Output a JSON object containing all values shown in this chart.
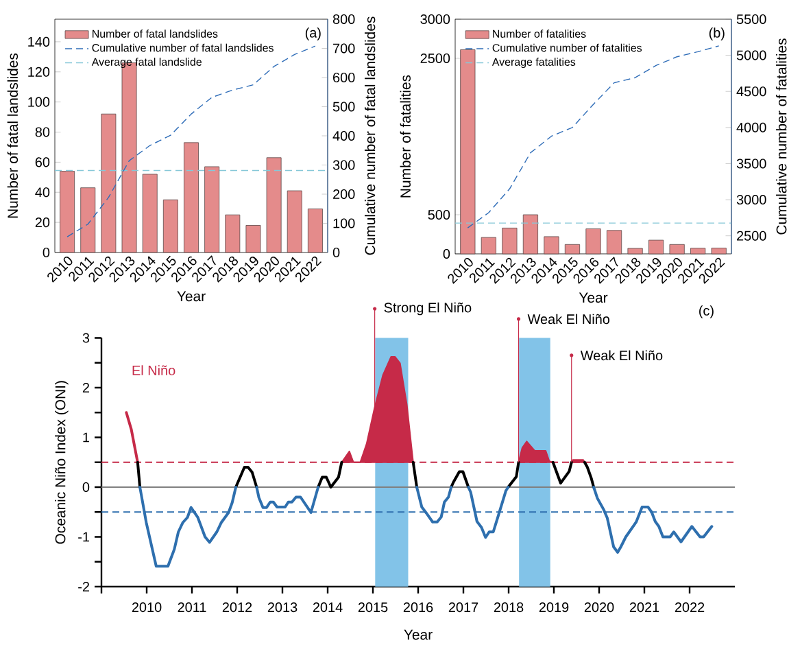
{
  "chart_data": [
    {
      "type": "bar",
      "categories": [
        "2010",
        "2011",
        "2012",
        "2013",
        "2014",
        "2015",
        "2016",
        "2017",
        "2018",
        "2019",
        "2020",
        "2021",
        "2022"
      ],
      "series": [
        {
          "name": "Number of fatal landslides",
          "type": "bar",
          "color": "#e48b8b",
          "values": [
            54,
            43,
            92,
            126,
            52,
            35,
            73,
            57,
            25,
            18,
            63,
            41,
            29
          ]
        },
        {
          "name": "Cumulative number of fatal landslides",
          "type": "line",
          "axis": "y2",
          "line_style": "dashed",
          "color": "#2f6db8",
          "values": [
            54,
            97,
            189,
            315,
            367,
            402,
            475,
            532,
            557,
            575,
            638,
            679,
            708
          ]
        }
      ],
      "ref_lines": [
        {
          "axis": "y",
          "value": 54.5,
          "label": "Average fatal landslide",
          "color": "#86c8d8",
          "line_style": "dashed"
        }
      ],
      "xlabel": "Year",
      "ylabel": "Number of fatal landslides",
      "y2label": "Cumulative number of fatal landslides",
      "ylim": [
        0,
        155
      ],
      "yticks": [
        0,
        20,
        40,
        60,
        80,
        100,
        120,
        140
      ],
      "y2lim": [
        0,
        800
      ],
      "y2ticks": [
        0,
        100,
        200,
        300,
        400,
        500,
        600,
        700,
        800
      ],
      "legend": "top left",
      "annotations": [
        "(a)"
      ]
    },
    {
      "type": "bar",
      "categories": [
        "2010",
        "2011",
        "2012",
        "2013",
        "2014",
        "2015",
        "2016",
        "2017",
        "2018",
        "2019",
        "2020",
        "2021",
        "2022"
      ],
      "series": [
        {
          "name": "Number of fatalities",
          "type": "bar",
          "color": "#e48b8b",
          "values": [
            2610,
            210,
            330,
            500,
            220,
            120,
            320,
            300,
            70,
            175,
            120,
            72,
            74
          ]
        },
        {
          "name": "Cumulative number of fatalities",
          "type": "line",
          "axis": "y2",
          "line_style": "dashed",
          "color": "#2f6db8",
          "values": [
            2610,
            2820,
            3150,
            3650,
            3880,
            4000,
            4320,
            4620,
            4690,
            4860,
            4980,
            5050,
            5130
          ]
        }
      ],
      "ref_lines": [
        {
          "axis": "y",
          "value": 394,
          "label": "Average fatalities",
          "color": "#86c8d8",
          "line_style": "dashed"
        }
      ],
      "xlabel": "Year",
      "ylabel": "Number of fatalities",
      "y2label": "Cumulative number of fatalities",
      "ylim": [
        0,
        3000
      ],
      "yticks": [
        0,
        500,
        2500,
        3000
      ],
      "y2lim": [
        2250,
        5500
      ],
      "y2ticks": [
        2500,
        3000,
        3500,
        4000,
        4500,
        5000,
        5500
      ],
      "legend": "top left",
      "annotations": [
        "(b)"
      ]
    },
    {
      "type": "line",
      "xlabel": "Year",
      "ylabel": "Oceanic Niño Index (ONI)",
      "xlim": [
        2009,
        2023
      ],
      "xticks": [
        {
          "value": 2009,
          "label": null
        },
        2010,
        2011,
        2012,
        2013,
        2014,
        2015,
        2016,
        2017,
        2018,
        2019,
        2020,
        2021,
        2022
      ],
      "ylim": [
        -2,
        3
      ],
      "yticks": [
        -2,
        {
          "value": -1.5,
          "label": null
        },
        -1,
        {
          "value": -0.5,
          "label": null
        },
        0,
        {
          "value": 0.5,
          "label": null
        },
        1,
        {
          "value": 1.5,
          "label": null
        },
        2,
        {
          "value": 2.5,
          "label": null
        },
        3
      ],
      "series": [
        {
          "name": "El Niño",
          "type": "line",
          "color": "#c62a48",
          "x": [
            2009.55,
            2009.66,
            2009.8
          ],
          "values": [
            1.5,
            1.16,
            0.5
          ]
        },
        {
          "type": "area",
          "color": "#c62a48",
          "x": [
            2014.31,
            2014.48,
            2014.57,
            2014.72,
            2014.86,
            2015.04,
            2015.22,
            2015.4,
            2015.49,
            2015.6,
            2015.75,
            2015.89
          ],
          "values": [
            0.5,
            0.72,
            0.5,
            0.5,
            0.87,
            1.61,
            2.25,
            2.62,
            2.62,
            2.49,
            1.66,
            0.5
          ]
        },
        {
          "type": "area",
          "color": "#c62a48",
          "x": [
            2018.22,
            2018.3,
            2018.4,
            2018.58,
            2018.82,
            2018.9,
            2018.98
          ],
          "values": [
            0.5,
            0.79,
            0.92,
            0.73,
            0.73,
            0.52,
            0.5
          ]
        },
        {
          "type": "area",
          "color": "#c62a48",
          "x": [
            2019.39,
            2019.42,
            2019.65,
            2019.68
          ],
          "values": [
            0.5,
            0.55,
            0.55,
            0.5
          ]
        },
        {
          "type": "line",
          "color": "#000000",
          "x": [
            2009.8,
            2009.85
          ],
          "values": [
            0.5,
            0.0
          ]
        },
        {
          "type": "line",
          "color": "#000000",
          "x": [
            2011.97,
            2012.16,
            2012.24,
            2012.33,
            2012.43
          ],
          "values": [
            0.0,
            0.4,
            0.4,
            0.3,
            0.0
          ]
        },
        {
          "type": "line",
          "color": "#000000",
          "x": [
            2013.79,
            2013.88,
            2013.97,
            2014.07,
            2014.24,
            2014.31
          ],
          "values": [
            0.0,
            0.2,
            0.2,
            0.0,
            0.2,
            0.5
          ]
        },
        {
          "type": "line",
          "color": "#000000",
          "x": [
            2015.89,
            2015.97
          ],
          "values": [
            0.5,
            0.0
          ]
        },
        {
          "type": "line",
          "color": "#000000",
          "x": [
            2016.73,
            2016.78,
            2016.91,
            2016.99,
            2017.11
          ],
          "values": [
            0.0,
            0.1,
            0.31,
            0.31,
            0.0
          ]
        },
        {
          "type": "line",
          "color": "#000000",
          "x": [
            2017.99,
            2018.17,
            2018.22
          ],
          "values": [
            0.0,
            0.21,
            0.5
          ]
        },
        {
          "type": "line",
          "color": "#000000",
          "x": [
            2018.98,
            2019.15,
            2019.34,
            2019.39
          ],
          "values": [
            0.5,
            0.08,
            0.32,
            0.5
          ]
        },
        {
          "type": "line",
          "color": "#000000",
          "x": [
            2019.68,
            2019.74,
            2019.83,
            2019.88
          ],
          "values": [
            0.5,
            0.4,
            0.17,
            0.0
          ]
        },
        {
          "type": "line",
          "color": "#2e6fae",
          "x": [
            2009.85,
            2009.99,
            2010.21,
            2010.47,
            2010.61,
            2010.7,
            2010.8,
            2010.9,
            2010.98,
            2011.13,
            2011.29,
            2011.39,
            2011.55,
            2011.65,
            2011.81,
            2011.89,
            2011.97
          ],
          "values": [
            0.0,
            -0.71,
            -1.59,
            -1.59,
            -1.25,
            -0.9,
            -0.71,
            -0.61,
            -0.41,
            -0.61,
            -1.0,
            -1.11,
            -0.9,
            -0.71,
            -0.51,
            -0.31,
            0.0
          ]
        },
        {
          "type": "line",
          "color": "#2e6fae",
          "x": [
            2012.43,
            2012.48,
            2012.57,
            2012.65,
            2012.73,
            2012.8,
            2012.88,
            2013.06,
            2013.13,
            2013.21,
            2013.3,
            2013.4,
            2013.63,
            2013.79
          ],
          "values": [
            0.0,
            -0.21,
            -0.41,
            -0.41,
            -0.3,
            -0.3,
            -0.4,
            -0.4,
            -0.3,
            -0.3,
            -0.2,
            -0.2,
            -0.51,
            0.0
          ]
        },
        {
          "type": "line",
          "color": "#2e6fae",
          "x": [
            2015.97,
            2016.08,
            2016.18,
            2016.32,
            2016.42,
            2016.51,
            2016.58,
            2016.67,
            2016.73
          ],
          "values": [
            0.0,
            -0.4,
            -0.52,
            -0.7,
            -0.7,
            -0.6,
            -0.3,
            -0.2,
            0.0
          ]
        },
        {
          "type": "line",
          "color": "#2e6fae",
          "x": [
            2017.11,
            2017.16,
            2017.3,
            2017.4,
            2017.49,
            2017.57,
            2017.66,
            2017.79,
            2017.94,
            2017.99
          ],
          "values": [
            0.0,
            -0.1,
            -0.69,
            -0.81,
            -1.01,
            -0.9,
            -0.9,
            -0.52,
            -0.07,
            0.0
          ]
        },
        {
          "type": "line",
          "color": "#2e6fae",
          "x": [
            2019.88,
            2019.96,
            2020.1,
            2020.18,
            2020.32,
            2020.41,
            2020.48,
            2020.59,
            2020.82,
            2020.95,
            2021.08,
            2021.16,
            2021.24,
            2021.32,
            2021.41,
            2021.57,
            2021.65,
            2021.81,
            2022.05,
            2022.23,
            2022.31,
            2022.49
          ],
          "values": [
            0.0,
            -0.22,
            -0.45,
            -0.62,
            -1.2,
            -1.31,
            -1.2,
            -1.0,
            -0.7,
            -0.4,
            -0.4,
            -0.5,
            -0.69,
            -0.79,
            -1.0,
            -1.0,
            -0.9,
            -1.1,
            -0.79,
            -1.0,
            -1.0,
            -0.79
          ]
        }
      ],
      "ref_lines": [
        {
          "axis": "y",
          "value": 0.5,
          "color": "#c62a48",
          "line_style": "dashed"
        },
        {
          "axis": "y",
          "value": -0.5,
          "color": "#2e6fae",
          "line_style": "dashed"
        },
        {
          "axis": "y",
          "value": 0,
          "color": "#808080",
          "line_style": "solid"
        }
      ],
      "bands": [
        {
          "axis": "x",
          "from": 2015.05,
          "to": 2015.78,
          "color": "#82c3e8"
        },
        {
          "axis": "x",
          "from": 2018.23,
          "to": 2018.92,
          "color": "#82c3e8"
        }
      ],
      "annotations": [
        {
          "text": "Strong El Niño",
          "x": 2015.04,
          "y": 1.61
        },
        {
          "text": "Weak El Niño",
          "x": 2018.22,
          "y": 0.5
        },
        {
          "text": "Weak El Niño",
          "x": 2019.39,
          "y": 0.5
        },
        "(c)"
      ]
    }
  ]
}
